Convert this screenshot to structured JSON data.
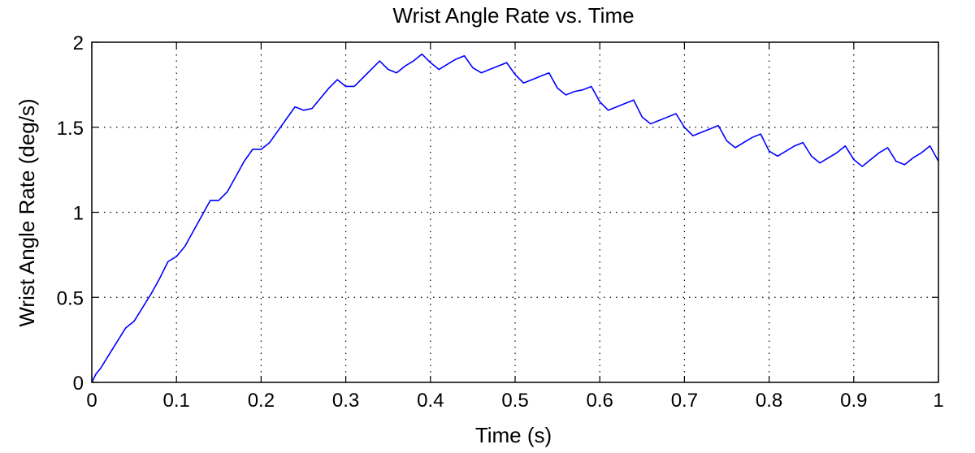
{
  "chart_data": {
    "type": "line",
    "title": "Wrist Angle Rate vs. Time",
    "xlabel": "Time (s)",
    "ylabel": "Wrist Angle Rate (deg/s)",
    "xlim": [
      0,
      1
    ],
    "ylim": [
      0,
      2
    ],
    "xticks": [
      0,
      0.1,
      0.2,
      0.3,
      0.4,
      0.5,
      0.6,
      0.7,
      0.8,
      0.9,
      1
    ],
    "xtick_labels": [
      "0",
      "0.1",
      "0.2",
      "0.3",
      "0.4",
      "0.5",
      "0.6",
      "0.7",
      "0.8",
      "0.9",
      "1"
    ],
    "yticks": [
      0,
      0.5,
      1,
      1.5,
      2
    ],
    "ytick_labels": [
      "0",
      "0.5",
      "1",
      "1.5",
      "2"
    ],
    "grid": true,
    "line_color": "#0000ff",
    "series": [
      {
        "x": [
          0,
          0.005,
          0.01,
          0.02,
          0.03,
          0.04,
          0.05,
          0.06,
          0.07,
          0.08,
          0.09,
          0.1,
          0.11,
          0.12,
          0.13,
          0.14,
          0.15,
          0.16,
          0.17,
          0.18,
          0.19,
          0.2,
          0.21,
          0.22,
          0.23,
          0.24,
          0.25,
          0.26,
          0.27,
          0.28,
          0.29,
          0.3,
          0.31,
          0.32,
          0.33,
          0.34,
          0.35,
          0.36,
          0.37,
          0.38,
          0.39,
          0.4,
          0.41,
          0.42,
          0.43,
          0.44,
          0.45,
          0.46,
          0.47,
          0.48,
          0.49,
          0.5,
          0.51,
          0.52,
          0.53,
          0.54,
          0.55,
          0.56,
          0.57,
          0.58,
          0.59,
          0.6,
          0.61,
          0.62,
          0.63,
          0.64,
          0.65,
          0.66,
          0.67,
          0.68,
          0.69,
          0.7,
          0.71,
          0.72,
          0.73,
          0.74,
          0.75,
          0.76,
          0.77,
          0.78,
          0.79,
          0.8,
          0.81,
          0.82,
          0.83,
          0.84,
          0.85,
          0.86,
          0.87,
          0.88,
          0.89,
          0.9,
          0.91,
          0.92,
          0.93,
          0.94,
          0.95,
          0.96,
          0.97,
          0.98,
          0.99,
          1.0
        ],
        "y": [
          0,
          0.05,
          0.08,
          0.16,
          0.24,
          0.32,
          0.36,
          0.44,
          0.52,
          0.61,
          0.71,
          0.74,
          0.8,
          0.89,
          0.98,
          1.07,
          1.07,
          1.12,
          1.21,
          1.3,
          1.37,
          1.37,
          1.41,
          1.48,
          1.55,
          1.62,
          1.6,
          1.61,
          1.67,
          1.73,
          1.78,
          1.74,
          1.74,
          1.79,
          1.84,
          1.89,
          1.84,
          1.82,
          1.86,
          1.89,
          1.93,
          1.88,
          1.84,
          1.87,
          1.9,
          1.92,
          1.85,
          1.82,
          1.84,
          1.86,
          1.88,
          1.81,
          1.76,
          1.78,
          1.8,
          1.82,
          1.73,
          1.69,
          1.71,
          1.72,
          1.74,
          1.65,
          1.6,
          1.62,
          1.64,
          1.66,
          1.56,
          1.52,
          1.54,
          1.56,
          1.58,
          1.5,
          1.45,
          1.47,
          1.49,
          1.51,
          1.42,
          1.38,
          1.41,
          1.44,
          1.46,
          1.36,
          1.33,
          1.36,
          1.39,
          1.41,
          1.33,
          1.29,
          1.32,
          1.35,
          1.39,
          1.31,
          1.27,
          1.31,
          1.35,
          1.38,
          1.3,
          1.28,
          1.32,
          1.35,
          1.39,
          1.3
        ]
      }
    ]
  }
}
